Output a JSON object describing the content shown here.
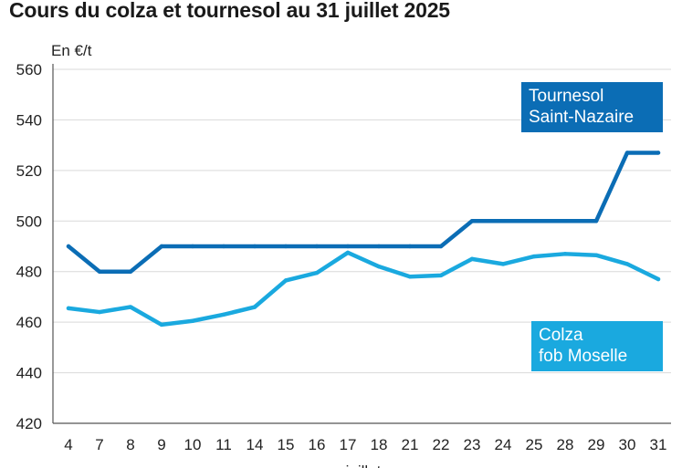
{
  "title": "Cours du colza et tournesol au 31 juillet 2025",
  "unit": "En €/t",
  "legend": {
    "tournesol": [
      "Tournesol",
      "Saint-Nazaire"
    ],
    "colza": [
      "Colza",
      "fob Moselle"
    ]
  },
  "chart_data": {
    "type": "line",
    "title": "Cours du colza et tournesol au 31 juillet 2025",
    "ylabel": "En €/t",
    "xlabel": "juillet",
    "ylim": [
      420,
      560
    ],
    "yticks": [
      420,
      440,
      460,
      480,
      500,
      520,
      540,
      560
    ],
    "categories": [
      "4",
      "7",
      "8",
      "9",
      "10",
      "11",
      "14",
      "15",
      "16",
      "17",
      "18",
      "21",
      "22",
      "23",
      "24",
      "25",
      "28",
      "29",
      "30",
      "31"
    ],
    "grid": "horizontal",
    "series": [
      {
        "name": "Tournesol Saint-Nazaire",
        "color": "#0b6db5",
        "values": [
          490,
          480,
          480,
          490,
          490,
          490,
          490,
          490,
          490,
          490,
          490,
          490,
          490,
          500,
          500,
          500,
          500,
          500,
          527,
          527
        ]
      },
      {
        "name": "Colza fob Moselle",
        "color": "#1aa9df",
        "values": [
          465.5,
          464,
          466,
          459,
          460.5,
          463,
          466,
          476.5,
          479.5,
          487.5,
          482,
          478,
          478.5,
          485,
          483,
          486,
          487,
          486.5,
          483,
          477
        ]
      }
    ]
  }
}
